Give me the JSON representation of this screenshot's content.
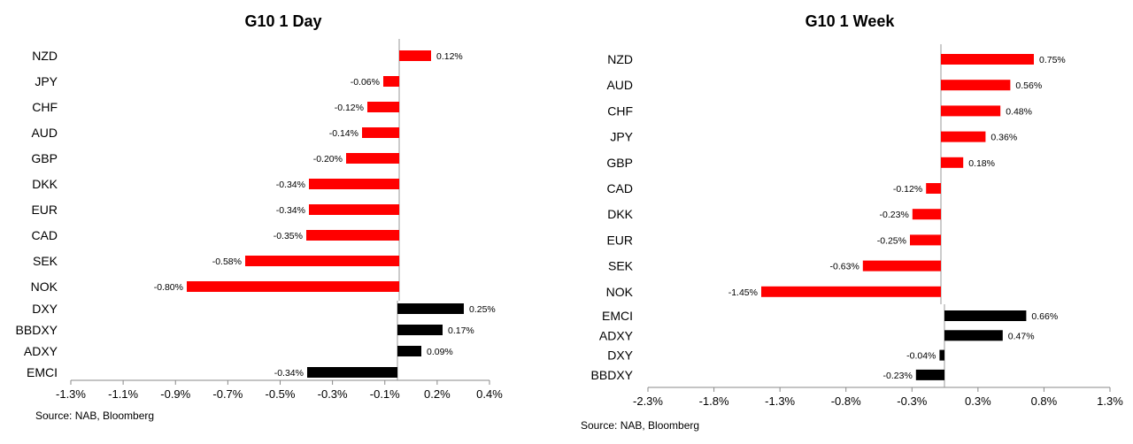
{
  "chart_data": [
    {
      "type": "bar",
      "orientation": "horizontal",
      "title": "G10 1 Day",
      "source": "Source: NAB, Bloomberg",
      "x_ticks": [
        "-1.3%",
        "-1.1%",
        "-0.9%",
        "-0.7%",
        "-0.5%",
        "-0.3%",
        "-0.1%",
        "0.2%",
        "0.4%"
      ],
      "xlim": [
        -1.3,
        0.4
      ],
      "groups": [
        {
          "color": "#ff0000",
          "categories": [
            "NZD",
            "JPY",
            "CHF",
            "AUD",
            "GBP",
            "DKK",
            "EUR",
            "CAD",
            "SEK",
            "NOK"
          ],
          "values": [
            0.12,
            -0.06,
            -0.12,
            -0.14,
            -0.2,
            -0.34,
            -0.34,
            -0.35,
            -0.58,
            -0.8
          ],
          "labels": [
            "0.12%",
            "-0.06%",
            "-0.12%",
            "-0.14%",
            "-0.20%",
            "-0.34%",
            "-0.34%",
            "-0.35%",
            "-0.58%",
            "-0.80%"
          ]
        },
        {
          "color": "#000000",
          "categories": [
            "DXY",
            "BBDXY",
            "ADXY",
            "EMCI"
          ],
          "values": [
            0.25,
            0.17,
            0.09,
            -0.34
          ],
          "labels": [
            "0.25%",
            "0.17%",
            "0.09%",
            "-0.34%"
          ]
        }
      ]
    },
    {
      "type": "bar",
      "orientation": "horizontal",
      "title": "G10 1 Week",
      "source": "Source: NAB, Bloomberg",
      "x_ticks": [
        "-2.3%",
        "-1.8%",
        "-1.3%",
        "-0.8%",
        "-0.3%",
        "0.3%",
        "0.8%",
        "1.3%"
      ],
      "xlim": [
        -2.3,
        1.3
      ],
      "groups": [
        {
          "color": "#ff0000",
          "categories": [
            "NZD",
            "AUD",
            "CHF",
            "JPY",
            "GBP",
            "CAD",
            "DKK",
            "EUR",
            "SEK",
            "NOK"
          ],
          "values": [
            0.75,
            0.56,
            0.48,
            0.36,
            0.18,
            -0.12,
            -0.23,
            -0.25,
            -0.63,
            -1.45
          ],
          "labels": [
            "0.75%",
            "0.56%",
            "0.48%",
            "0.36%",
            "0.18%",
            "-0.12%",
            "-0.23%",
            "-0.25%",
            "-0.63%",
            "-1.45%"
          ]
        },
        {
          "color": "#000000",
          "categories": [
            "EMCI",
            "ADXY",
            "DXY",
            "BBDXY"
          ],
          "values": [
            0.66,
            0.47,
            -0.04,
            -0.23
          ],
          "labels": [
            "0.66%",
            "0.47%",
            "-0.04%",
            "-0.23%"
          ]
        }
      ]
    }
  ]
}
